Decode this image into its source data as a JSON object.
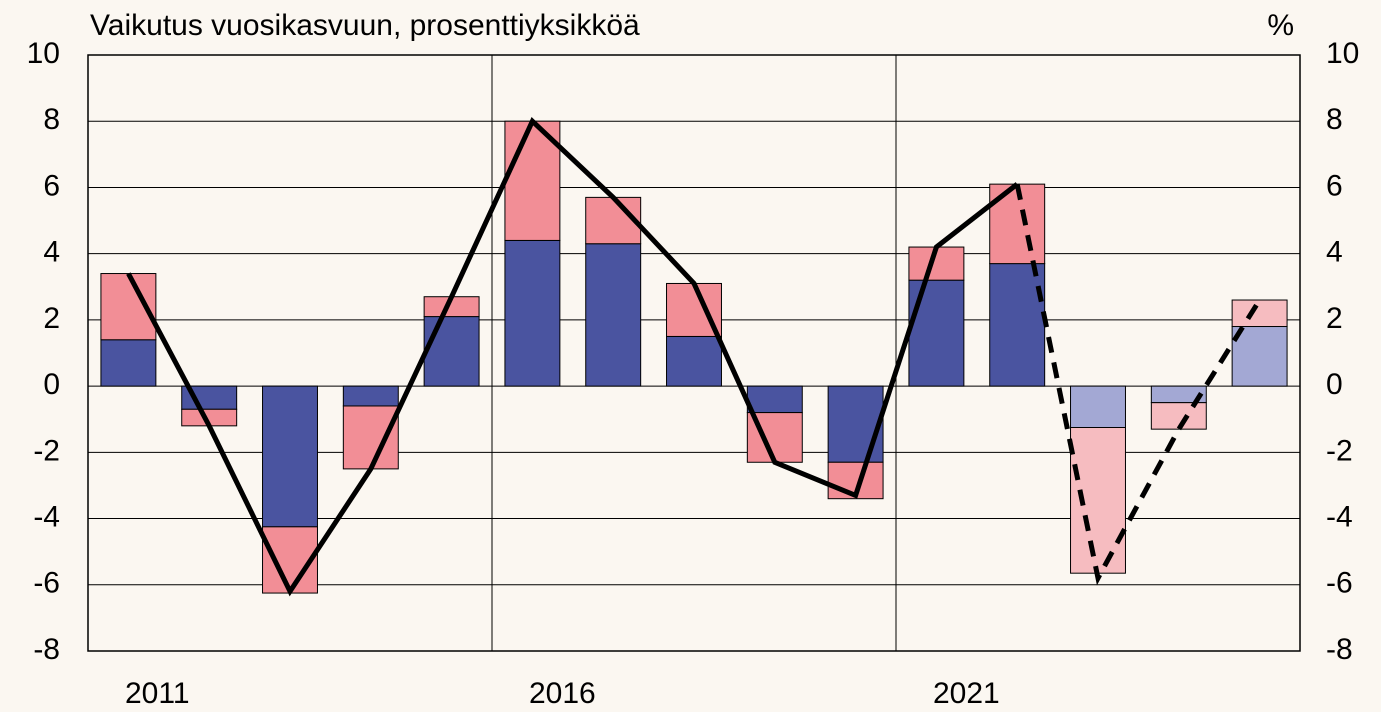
{
  "chart_data": {
    "type": "stacked-bar-line",
    "title": "Vaikutus vuosikasvuun, prosenttiyksikköä",
    "unit_label": "%",
    "categories": [
      "2011",
      null,
      null,
      null,
      null,
      "2016",
      null,
      null,
      null,
      null,
      "2021",
      null,
      null,
      null,
      null
    ],
    "series": [
      {
        "kind": "bar",
        "values": [
          1.4,
          -0.7,
          -4.25,
          -0.6,
          2.1,
          4.4,
          4.3,
          1.5,
          -0.8,
          -2.3,
          3.2,
          3.7,
          -1.25,
          -0.5,
          1.8
        ],
        "colors": [
          "#4a54a0",
          "#4a54a0",
          "#4a54a0",
          "#4a54a0",
          "#4a54a0",
          "#4a54a0",
          "#4a54a0",
          "#4a54a0",
          "#4a54a0",
          "#4a54a0",
          "#4a54a0",
          "#4a54a0",
          "#a3a8d4",
          "#a3a8d4",
          "#a3a8d4"
        ]
      },
      {
        "kind": "bar",
        "values": [
          2.0,
          -0.5,
          -2.0,
          -1.9,
          0.6,
          3.6,
          1.4,
          1.6,
          -1.5,
          -1.1,
          1.0,
          2.4,
          -4.4,
          -0.8,
          0.8
        ],
        "colors": [
          "#f28e96",
          "#f28e96",
          "#f28e96",
          "#f28e96",
          "#f28e96",
          "#f28e96",
          "#f28e96",
          "#f28e96",
          "#f28e96",
          "#f28e96",
          "#f28e96",
          "#f28e96",
          "#f6bcc0",
          "#f6bcc0",
          "#f6bcc0"
        ]
      },
      {
        "kind": "line",
        "color": "#000000",
        "dashed": false,
        "values": [
          3.4,
          -1.2,
          -6.2,
          -2.5,
          2.7,
          8.0,
          5.7,
          3.1,
          -2.3,
          -3.3,
          4.2,
          6.1,
          null,
          null,
          null
        ]
      },
      {
        "kind": "line",
        "color": "#000000",
        "dashed": true,
        "values": [
          null,
          null,
          null,
          null,
          null,
          null,
          null,
          null,
          null,
          null,
          null,
          6.1,
          -5.8,
          -1.3,
          2.6
        ]
      }
    ],
    "ylim": [
      -8,
      10
    ],
    "yticks": [
      -8,
      -6,
      -4,
      -2,
      0,
      2,
      4,
      6,
      8,
      10
    ],
    "y2lim": [
      -8,
      10
    ],
    "y2ticks": [
      -8,
      -6,
      -4,
      -2,
      0,
      2,
      4,
      6,
      8,
      10
    ],
    "grid": true
  }
}
